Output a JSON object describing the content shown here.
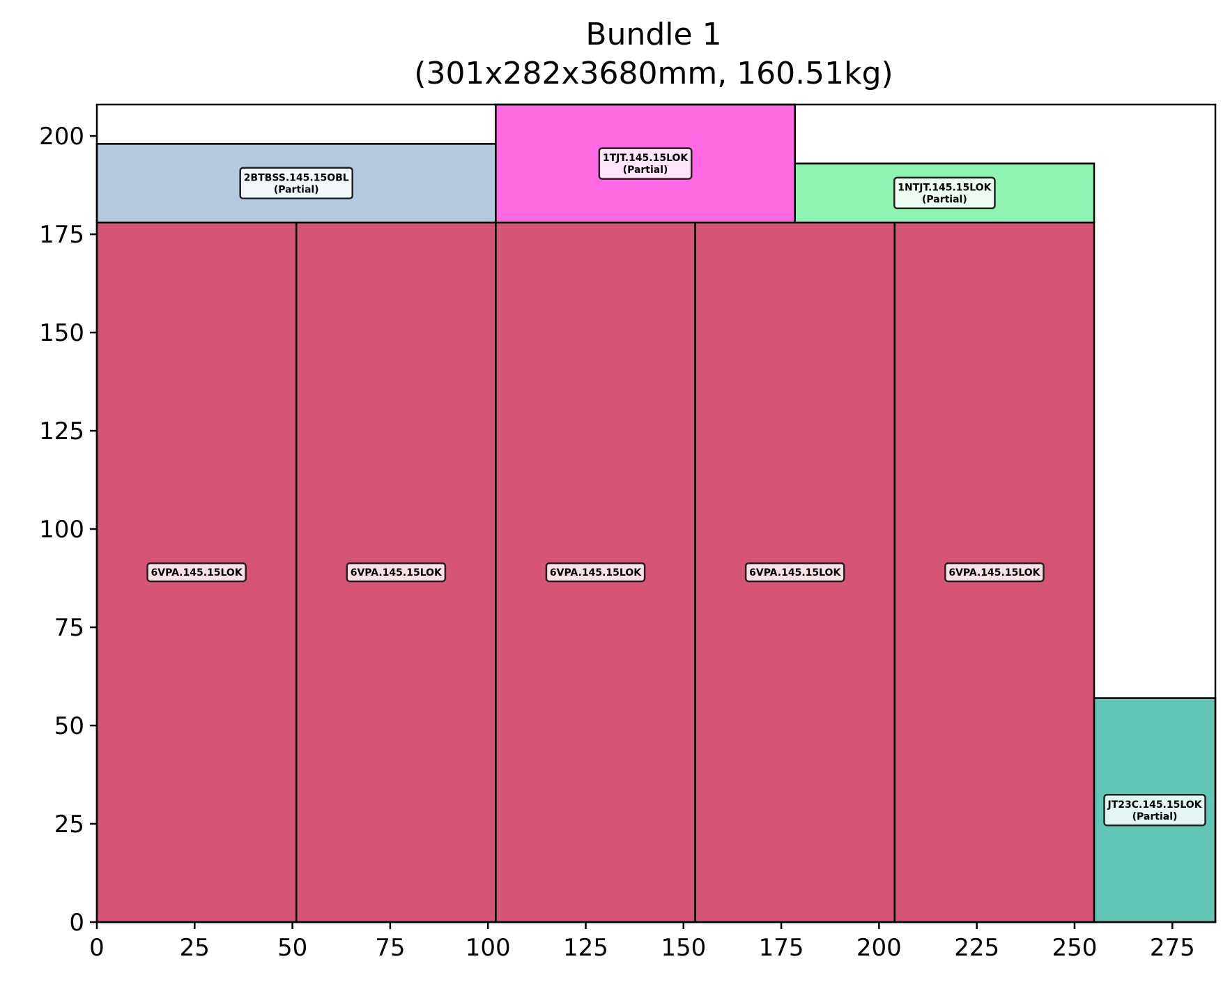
{
  "chart_data": {
    "type": "rectangle-packing",
    "title": "Bundle 1",
    "subtitle": "(301x282x3680mm, 160.51kg)",
    "xlabel": "",
    "ylabel": "",
    "xlim": [
      0,
      286
    ],
    "ylim": [
      0,
      208
    ],
    "xticks": [
      0,
      25,
      50,
      75,
      100,
      125,
      150,
      175,
      200,
      225,
      250,
      275
    ],
    "yticks": [
      0,
      25,
      50,
      75,
      100,
      125,
      150,
      175,
      200
    ],
    "grid": false,
    "items": [
      {
        "label": "6VPA.145.15LOK",
        "note": "",
        "x": 0,
        "y": 0,
        "w": 51,
        "h": 178,
        "color": "#d65577"
      },
      {
        "label": "6VPA.145.15LOK",
        "note": "",
        "x": 51,
        "y": 0,
        "w": 51,
        "h": 178,
        "color": "#d65577"
      },
      {
        "label": "6VPA.145.15LOK",
        "note": "",
        "x": 102,
        "y": 0,
        "w": 51,
        "h": 178,
        "color": "#d65577"
      },
      {
        "label": "6VPA.145.15LOK",
        "note": "",
        "x": 153,
        "y": 0,
        "w": 51,
        "h": 178,
        "color": "#d65577"
      },
      {
        "label": "6VPA.145.15LOK",
        "note": "",
        "x": 204,
        "y": 0,
        "w": 51,
        "h": 178,
        "color": "#d65577"
      },
      {
        "label": "2BTBSS.145.15OBL",
        "note": "(Partial)",
        "x": 0,
        "y": 178,
        "w": 102,
        "h": 20,
        "color": "#b3cade"
      },
      {
        "label": "1TJT.145.15LOK",
        "note": "(Partial)",
        "x": 102,
        "y": 178,
        "w": 76.5,
        "h": 30,
        "color": "#ff6ae3"
      },
      {
        "label": "1NTJT.145.15LOK",
        "note": "(Partial)",
        "x": 178.5,
        "y": 178,
        "w": 76.5,
        "h": 15,
        "color": "#8ff4b2"
      },
      {
        "label": "JT23C.145.15LOK",
        "note": "(Partial)",
        "x": 255,
        "y": 0,
        "w": 31,
        "h": 57,
        "color": "#62c6b4"
      }
    ]
  }
}
